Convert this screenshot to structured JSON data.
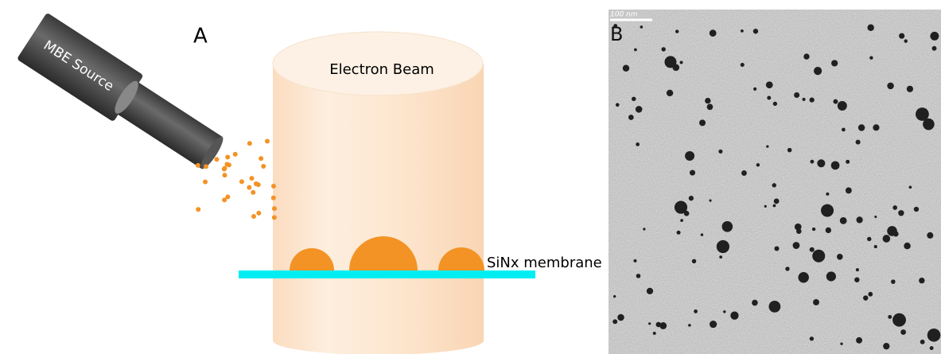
{
  "panel_a": {
    "label": "A",
    "source_label": "MBE Source",
    "beam_label": "Electron Beam",
    "membrane_label": "SiNx membrane"
  },
  "panel_b": {
    "label": "B",
    "scale_bar": "100 nm"
  }
}
